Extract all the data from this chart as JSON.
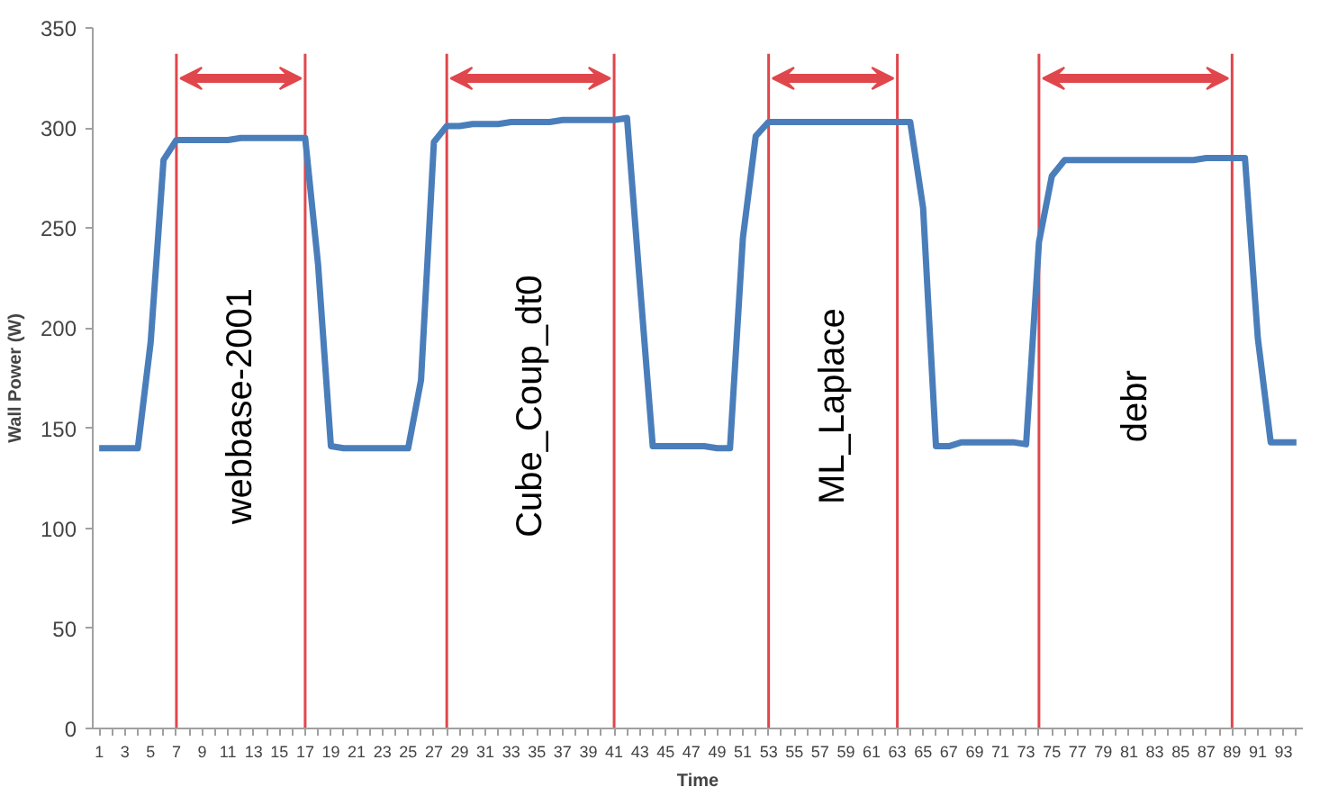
{
  "chart_data": {
    "type": "line",
    "xlabel": "Time",
    "ylabel": "Wall Power (W)",
    "x": [
      1,
      2,
      3,
      4,
      5,
      6,
      7,
      8,
      9,
      10,
      11,
      12,
      13,
      14,
      15,
      16,
      17,
      18,
      19,
      20,
      21,
      22,
      23,
      24,
      25,
      26,
      27,
      28,
      29,
      30,
      31,
      32,
      33,
      34,
      35,
      36,
      37,
      38,
      39,
      40,
      41,
      42,
      43,
      44,
      45,
      46,
      47,
      48,
      49,
      50,
      51,
      52,
      53,
      54,
      55,
      56,
      57,
      58,
      59,
      60,
      61,
      62,
      63,
      64,
      65,
      66,
      67,
      68,
      69,
      70,
      71,
      72,
      73,
      74,
      75,
      76,
      77,
      78,
      79,
      80,
      81,
      82,
      83,
      84,
      85,
      86,
      87,
      88,
      89,
      90,
      91,
      92,
      93,
      94
    ],
    "series": [
      {
        "color": "#4a7ebb",
        "values": [
          140,
          140,
          140,
          140,
          193,
          284,
          294,
          294,
          294,
          294,
          294,
          295,
          295,
          295,
          295,
          295,
          295,
          232,
          141,
          140,
          140,
          140,
          140,
          140,
          140,
          174,
          293,
          301,
          301,
          302,
          302,
          302,
          303,
          303,
          303,
          303,
          304,
          304,
          304,
          304,
          304,
          305,
          222,
          141,
          141,
          141,
          141,
          141,
          140,
          140,
          245,
          296,
          303,
          303,
          303,
          303,
          303,
          303,
          303,
          303,
          303,
          303,
          303,
          303,
          260,
          141,
          141,
          143,
          143,
          143,
          143,
          143,
          142,
          243,
          276,
          284,
          284,
          284,
          284,
          284,
          284,
          284,
          284,
          284,
          284,
          284,
          285,
          285,
          285,
          285,
          195,
          143,
          143,
          143
        ]
      }
    ],
    "xlim": [
      0.5,
      94.5
    ],
    "ylim": [
      0,
      350
    ],
    "yticks": [
      0,
      50,
      100,
      150,
      200,
      250,
      300,
      350
    ],
    "xticks": [
      1,
      {
        "value": 2,
        "label": null
      },
      3,
      {
        "value": 4,
        "label": null
      },
      5,
      {
        "value": 6,
        "label": null
      },
      7,
      {
        "value": 8,
        "label": null
      },
      9,
      {
        "value": 10,
        "label": null
      },
      11,
      {
        "value": 12,
        "label": null
      },
      13,
      {
        "value": 14,
        "label": null
      },
      15,
      {
        "value": 16,
        "label": null
      },
      17,
      {
        "value": 18,
        "label": null
      },
      19,
      {
        "value": 20,
        "label": null
      },
      21,
      {
        "value": 22,
        "label": null
      },
      23,
      {
        "value": 24,
        "label": null
      },
      25,
      {
        "value": 26,
        "label": null
      },
      27,
      {
        "value": 28,
        "label": null
      },
      29,
      {
        "value": 30,
        "label": null
      },
      31,
      {
        "value": 32,
        "label": null
      },
      33,
      {
        "value": 34,
        "label": null
      },
      35,
      {
        "value": 36,
        "label": null
      },
      37,
      {
        "value": 38,
        "label": null
      },
      39,
      {
        "value": 40,
        "label": null
      },
      41,
      {
        "value": 42,
        "label": null
      },
      43,
      {
        "value": 44,
        "label": null
      },
      45,
      {
        "value": 46,
        "label": null
      },
      47,
      {
        "value": 48,
        "label": null
      },
      49,
      {
        "value": 50,
        "label": null
      },
      51,
      {
        "value": 52,
        "label": null
      },
      53,
      {
        "value": 54,
        "label": null
      },
      55,
      {
        "value": 56,
        "label": null
      },
      57,
      {
        "value": 58,
        "label": null
      },
      59,
      {
        "value": 60,
        "label": null
      },
      61,
      {
        "value": 62,
        "label": null
      },
      63,
      {
        "value": 64,
        "label": null
      },
      65,
      {
        "value": 66,
        "label": null
      },
      67,
      {
        "value": 68,
        "label": null
      },
      69,
      {
        "value": 70,
        "label": null
      },
      71,
      {
        "value": 72,
        "label": null
      },
      73,
      {
        "value": 74,
        "label": null
      },
      75,
      {
        "value": 76,
        "label": null
      },
      77,
      {
        "value": 78,
        "label": null
      },
      79,
      {
        "value": 80,
        "label": null
      },
      81,
      {
        "value": 82,
        "label": null
      },
      83,
      {
        "value": 84,
        "label": null
      },
      85,
      {
        "value": 86,
        "label": null
      },
      87,
      {
        "value": 88,
        "label": null
      },
      89,
      {
        "value": 90,
        "label": null
      },
      91,
      {
        "value": 92,
        "label": null
      },
      93,
      {
        "value": 94,
        "label": null
      }
    ],
    "ref_lines": [
      {
        "axis": "x",
        "value": 7,
        "label": null,
        "color": "#e0474c"
      },
      {
        "axis": "x",
        "value": 17,
        "label": null,
        "color": "#e0474c"
      },
      {
        "axis": "x",
        "value": 28,
        "label": null,
        "color": "#e0474c"
      },
      {
        "axis": "x",
        "value": 41,
        "label": null,
        "color": "#e0474c"
      },
      {
        "axis": "x",
        "value": 53,
        "label": null,
        "color": "#e0474c"
      },
      {
        "axis": "x",
        "value": 63,
        "label": null,
        "color": "#e0474c"
      },
      {
        "axis": "x",
        "value": 74,
        "label": null,
        "color": "#e0474c"
      },
      {
        "axis": "x",
        "value": 89,
        "label": null,
        "color": "#e0474c"
      }
    ],
    "annotations": [
      "webbase-2001",
      "Cube_Coup_dt0",
      "ML_Laplace",
      "debr"
    ],
    "grid": false,
    "marker": "none",
    "line_style": "solid"
  }
}
